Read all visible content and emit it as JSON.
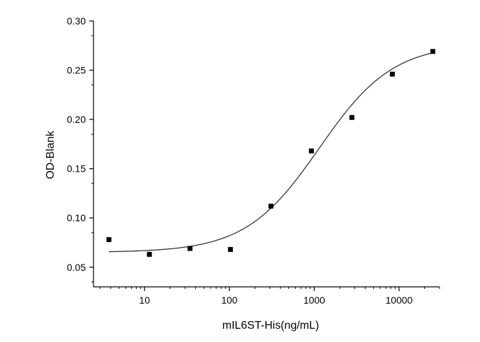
{
  "chart_data": {
    "type": "scatter",
    "title": "",
    "xlabel": "mIL6ST-His(ng/mL)",
    "ylabel": "OD-Blank",
    "x_scale": "log",
    "xlim": [
      2.5,
      30000
    ],
    "ylim": [
      0.03,
      0.3
    ],
    "x_ticks": [
      10,
      100,
      1000,
      10000
    ],
    "x_tick_labels": [
      "10",
      "100",
      "1000",
      "10000"
    ],
    "y_ticks": [
      0.05,
      0.1,
      0.15,
      0.2,
      0.25,
      0.3
    ],
    "y_tick_labels": [
      "0.05",
      "0.10",
      "0.15",
      "0.20",
      "0.25",
      "0.30"
    ],
    "grid": false,
    "legend": "none",
    "colors": {
      "marker": "#000000",
      "curve": "#333333",
      "axis": "#000000"
    },
    "series": [
      {
        "kind": "points",
        "marker": "square",
        "x": [
          3.8,
          11.4,
          34.3,
          102.9,
          308.6,
          925.9,
          2777.8,
          8333.3,
          25000
        ],
        "y": [
          0.078,
          0.063,
          0.069,
          0.068,
          0.112,
          0.168,
          0.202,
          0.246,
          0.269
        ]
      },
      {
        "kind": "fit-curve",
        "model": "4PL",
        "bottom": 0.065,
        "top": 0.277,
        "ec50": 1150,
        "hill": 1.0,
        "x_range": [
          3.8,
          25000
        ]
      }
    ]
  }
}
